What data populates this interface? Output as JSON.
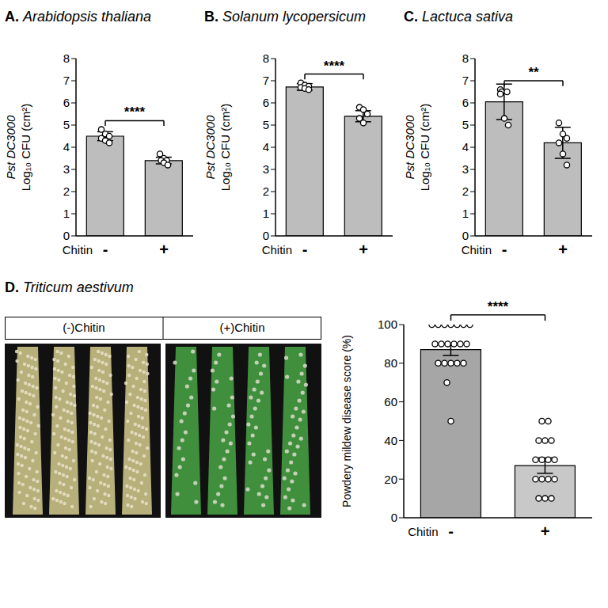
{
  "chart_data": [
    {
      "panel": "A.",
      "title": "Arabidopsis thaliana",
      "type": "bar",
      "ylabel": [
        "Pst DC3000",
        "Log₁₀ CFU (cm²)"
      ],
      "xlabel": "Chitin",
      "categories": [
        "-",
        "+"
      ],
      "values": [
        4.5,
        3.4
      ],
      "error": [
        0.2,
        0.15
      ],
      "points": [
        [
          4.8,
          4.6,
          4.5,
          4.4,
          4.3,
          4.2
        ],
        [
          3.7,
          3.5,
          3.4,
          3.4,
          3.3,
          3.2
        ]
      ],
      "colors": [
        "#bdbdbd",
        "#bdbdbd"
      ],
      "ylim": [
        0,
        8
      ],
      "yticks": [
        0,
        1,
        2,
        3,
        4,
        5,
        6,
        7,
        8
      ],
      "annotations": [
        "****"
      ]
    },
    {
      "panel": "B.",
      "title": "Solanum lycopersicum",
      "type": "bar",
      "ylabel": [
        "Pst DC3000",
        "Log₁₀ CFU (cm²)"
      ],
      "xlabel": "Chitin",
      "categories": [
        "-",
        "+"
      ],
      "values": [
        6.72,
        5.4
      ],
      "error": [
        0.15,
        0.25
      ],
      "points": [
        [
          6.9,
          6.8,
          6.75,
          6.7,
          6.65,
          6.6
        ],
        [
          5.8,
          5.7,
          5.5,
          5.3,
          5.1
        ]
      ],
      "colors": [
        "#bdbdbd",
        "#bdbdbd"
      ],
      "ylim": [
        0,
        8
      ],
      "yticks": [
        0,
        1,
        2,
        3,
        4,
        5,
        6,
        7,
        8
      ],
      "annotations": [
        "****"
      ]
    },
    {
      "panel": "C.",
      "title": "Lactuca sativa",
      "type": "bar",
      "ylabel": [
        "Pst DC3000",
        "Log₁₀ CFU (cm²)"
      ],
      "xlabel": "Chitin",
      "categories": [
        "-",
        "+"
      ],
      "values": [
        6.05,
        4.2
      ],
      "error": [
        0.8,
        0.7
      ],
      "points": [
        [
          6.6,
          6.5,
          6.5,
          6.4,
          5.3,
          5.0
        ],
        [
          5.1,
          4.6,
          4.4,
          4.2,
          3.7,
          3.2
        ]
      ],
      "colors": [
        "#bdbdbd",
        "#bdbdbd"
      ],
      "ylim": [
        0,
        8
      ],
      "yticks": [
        0,
        1,
        2,
        3,
        4,
        5,
        6,
        7,
        8
      ],
      "annotations": [
        "**"
      ]
    },
    {
      "panel": "D.",
      "title": "Triticum aestivum",
      "type": "bar",
      "image_labels": [
        "(-)Chitin",
        "(+)Chitin"
      ],
      "ylabel": [
        "Powdery mildew disease score (%)"
      ],
      "xlabel": "Chitin",
      "categories": [
        "-",
        "+"
      ],
      "values": [
        87,
        27
      ],
      "error": [
        3,
        4
      ],
      "points": [
        [
          100,
          100,
          100,
          100,
          100,
          100,
          100,
          90,
          90,
          90,
          90,
          90,
          90,
          80,
          80,
          80,
          80,
          80,
          70,
          50
        ],
        [
          50,
          50,
          40,
          40,
          40,
          30,
          30,
          30,
          30,
          20,
          20,
          20,
          20,
          10,
          10,
          10
        ]
      ],
      "colors": [
        "#a6a6a6",
        "#c8c8c8"
      ],
      "ylim": [
        0,
        100
      ],
      "yticks": [
        0,
        20,
        40,
        60,
        80,
        100
      ],
      "annotations": [
        "****"
      ]
    }
  ]
}
